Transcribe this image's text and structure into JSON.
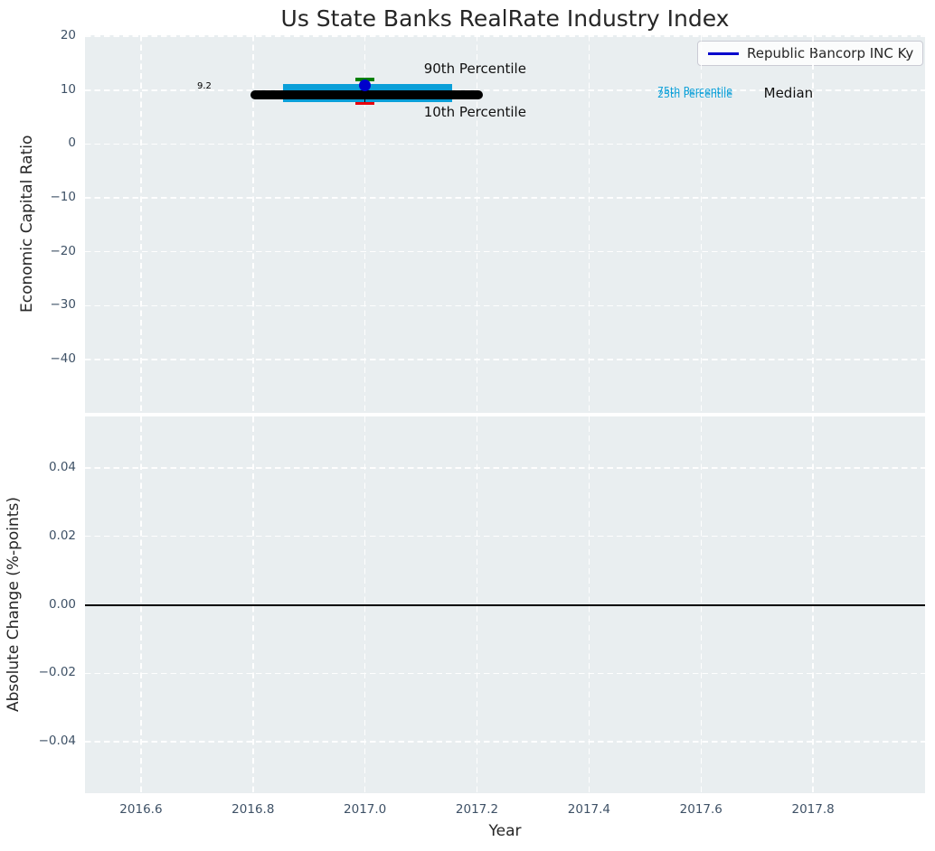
{
  "figure": {
    "title": "Us State Banks RealRate Industry Index",
    "axes_background": "#e9eef0",
    "tick_color": "#3e5166",
    "text_color": "#262626"
  },
  "legend": {
    "label": "Republic Bancorp INC Ky",
    "line_color": "#0000cc"
  },
  "top_plot": {
    "ylabel": "Economic Capital Ratio"
  },
  "bottom_plot": {
    "ylabel": "Absolute Change (%-points)"
  },
  "x_axis": {
    "label": "Year"
  },
  "chart_data": {
    "type": "scatter",
    "title": "Us State Banks RealRate Industry Index",
    "xlabel": "Year",
    "xlim": [
      2016.5,
      2018.0
    ],
    "xticks": [
      2016.6,
      2016.8,
      2017.0,
      2017.2,
      2017.4,
      2017.6,
      2017.8
    ],
    "xtick_labels": [
      "2016.6",
      "2016.8",
      "2017.0",
      "2017.2",
      "2017.4",
      "2017.6",
      "2017.8"
    ],
    "grid": true,
    "subplots": [
      {
        "ylabel": "Economic Capital Ratio",
        "ylim": [
          -49.9,
          20.2
        ],
        "yticks": [
          20,
          10,
          0,
          -10,
          -20,
          -30,
          -40
        ],
        "ytick_labels": [
          "20",
          "10",
          "0",
          "−10",
          "−20",
          "−30",
          "−40"
        ],
        "legend_position": "upper right",
        "series": [
          {
            "key": "p75-line",
            "name": "75th Percentile",
            "type": "hline-segment",
            "x": [
              2016.853,
              2017.155
            ],
            "y": 9.8,
            "color": "#0a9fd8",
            "lw": 17
          },
          {
            "key": "p25-line",
            "name": "25th Percentile",
            "type": "hline-segment",
            "x": [
              2016.853,
              2017.155
            ],
            "y": 9.15,
            "color": "#0a9fd8",
            "lw": 17
          },
          {
            "key": "median-line",
            "name": "Median",
            "type": "hline-segment",
            "x": [
              2016.795,
              2017.21
            ],
            "y": 9.2,
            "color": "#000000",
            "lw": 10,
            "rounded": true
          },
          {
            "key": "percentile-stem",
            "name": "10th-90th Percentile range",
            "type": "vline-segment",
            "x": 2017.0,
            "y": [
              7.5,
              12.0
            ],
            "color": "#000000",
            "lw": 1.6
          },
          {
            "key": "p90-cap",
            "name": "90th Percentile",
            "type": "errorbar-cap",
            "x": 2017.0,
            "y": 12.0,
            "color": "#008000",
            "cap_w": 21,
            "cap_h": 3.5
          },
          {
            "key": "p10-cap",
            "name": "10th Percentile",
            "type": "errorbar-cap",
            "x": 2017.0,
            "y": 7.5,
            "color": "#e8000b",
            "cap_w": 21,
            "cap_h": 3.5
          },
          {
            "key": "company-point",
            "name": "Republic Bancorp INC Ky",
            "type": "scatter",
            "x": 2017.0,
            "y": 10.9,
            "color": "#0000cc",
            "marker_d": 13
          }
        ],
        "annotations": [
          {
            "text": "9.2",
            "x": 2016.713,
            "y": 10.6,
            "color": "#000000",
            "size": 10,
            "ha": "center"
          },
          {
            "text": "90th Percentile",
            "x": 2017.105,
            "y": 13.9,
            "color": "#111111",
            "size": 15,
            "ha": "left"
          },
          {
            "text": "10th Percentile",
            "x": 2017.105,
            "y": 5.8,
            "color": "#111111",
            "size": 15,
            "ha": "left"
          },
          {
            "text": "75th Percentile",
            "x": 2017.522,
            "y": 9.8,
            "color": "#0a9fd8",
            "size": 11,
            "ha": "left"
          },
          {
            "text": "25th Percentile",
            "x": 2017.522,
            "y": 9.15,
            "color": "#0a9fd8",
            "size": 11,
            "ha": "left"
          },
          {
            "text": "Median",
            "x": 2017.712,
            "y": 9.3,
            "color": "#111111",
            "size": 15,
            "ha": "left"
          }
        ]
      },
      {
        "ylabel": "Absolute Change (%-points)",
        "ylim": [
          -0.055,
          0.055
        ],
        "yticks": [
          0.04,
          0.02,
          0,
          -0.02,
          -0.04
        ],
        "ytick_labels": [
          "0.04",
          "0.02",
          "0.00",
          "−0.02",
          "−0.04"
        ],
        "series": [
          {
            "key": "zero-line",
            "name": "zero change line",
            "type": "hline",
            "y": 0.0,
            "color": "#000000",
            "lw": 2
          }
        ],
        "annotations": []
      }
    ]
  }
}
